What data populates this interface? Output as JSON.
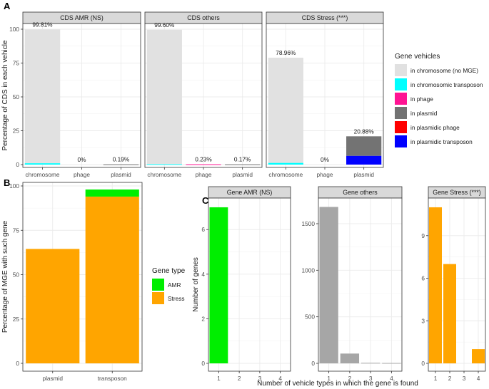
{
  "colors": {
    "in chromosome (no MGE)": "#e1e1e1",
    "in chromosomic transposon": "#00ffff",
    "in phage": "#ff1493",
    "in plasmid": "#737373",
    "in plasmidic phage": "#ff0000",
    "in plasmidic transposon": "#0000ff",
    "AMR": "#00ee00",
    "Stress": "#ffa500",
    "others": "#a6a6a6",
    "panel_strip": "#d9d9d9",
    "grid": "#ebebeb"
  },
  "chart_data": [
    {
      "id": "A",
      "type": "bar",
      "stacked": true,
      "panel_label": "A",
      "ylabel": "Percentage of CDS in each vehicle",
      "xlabel": "",
      "ylim": [
        0,
        100
      ],
      "yticks": [
        0,
        25,
        50,
        75,
        100
      ],
      "categories": [
        "chromosome",
        "phage",
        "plasmid"
      ],
      "legend": {
        "title": "Gene vehicles",
        "position": "right",
        "entries": [
          "in chromosome (no MGE)",
          "in chromosomic transposon",
          "in phage",
          "in plasmid",
          "in plasmidic phage",
          "in plasmidic transposon"
        ]
      },
      "facets": [
        {
          "title": "CDS AMR (NS)",
          "labels": [
            "99.81%",
            "0%",
            "0.19%"
          ],
          "series": [
            {
              "name": "in chromosome (no MGE)",
              "values": [
                98.8,
                0,
                0
              ]
            },
            {
              "name": "in chromosomic transposon",
              "values": [
                1.0,
                0,
                0
              ]
            },
            {
              "name": "in phage",
              "values": [
                0,
                0,
                0
              ]
            },
            {
              "name": "in plasmid",
              "values": [
                0,
                0,
                0.19
              ]
            },
            {
              "name": "in plasmidic phage",
              "values": [
                0,
                0,
                0
              ]
            },
            {
              "name": "in plasmidic transposon",
              "values": [
                0,
                0,
                0
              ]
            }
          ]
        },
        {
          "title": "CDS others",
          "labels": [
            "99.60%",
            "0.23%",
            "0.17%"
          ],
          "series": [
            {
              "name": "in chromosome (no MGE)",
              "values": [
                99.3,
                0,
                0
              ]
            },
            {
              "name": "in chromosomic transposon",
              "values": [
                0.3,
                0,
                0
              ]
            },
            {
              "name": "in phage",
              "values": [
                0,
                0.23,
                0
              ]
            },
            {
              "name": "in plasmid",
              "values": [
                0,
                0,
                0.17
              ]
            },
            {
              "name": "in plasmidic phage",
              "values": [
                0,
                0,
                0
              ]
            },
            {
              "name": "in plasmidic transposon",
              "values": [
                0,
                0,
                0
              ]
            }
          ]
        },
        {
          "title": "CDS Stress (***)",
          "labels": [
            "78.96%",
            "0%",
            "20.88%"
          ],
          "series": [
            {
              "name": "in chromosome (no MGE)",
              "values": [
                77.7,
                0,
                0
              ]
            },
            {
              "name": "in chromosomic transposon",
              "values": [
                1.26,
                0,
                0
              ]
            },
            {
              "name": "in phage",
              "values": [
                0,
                0,
                0
              ]
            },
            {
              "name": "in plasmid",
              "values": [
                0,
                0,
                14.4
              ]
            },
            {
              "name": "in plasmidic phage",
              "values": [
                0,
                0,
                0
              ]
            },
            {
              "name": "in plasmidic transposon",
              "values": [
                0,
                0,
                6.48
              ]
            }
          ]
        }
      ]
    },
    {
      "id": "B",
      "type": "bar",
      "stacked": true,
      "panel_label": "B",
      "ylabel": "Percentage of MGE with such gene",
      "xlabel": "",
      "ylim": [
        0,
        100
      ],
      "yticks": [
        0,
        25,
        50,
        75,
        100
      ],
      "categories": [
        "plasmid",
        "transposon"
      ],
      "series": [
        {
          "name": "Stress",
          "values": [
            64.5,
            94.0
          ]
        },
        {
          "name": "AMR",
          "values": [
            0,
            4.0
          ]
        }
      ],
      "legend": {
        "title": "Gene type",
        "position": "right",
        "entries": [
          "AMR",
          "Stress"
        ]
      }
    },
    {
      "id": "C",
      "type": "bar",
      "panel_label": "C",
      "ylabel": "Number of genes",
      "xlabel": "Number of vehicle types in which the gene is found",
      "x": [
        "1",
        "2",
        "3",
        "4"
      ],
      "facets": [
        {
          "title": "Gene AMR (NS)",
          "series_name": "AMR",
          "ylim": [
            0,
            7.35
          ],
          "yticks": [
            0,
            2,
            4,
            6
          ],
          "values": [
            7,
            0,
            0,
            0
          ]
        },
        {
          "title": "Gene others",
          "series_name": "others",
          "ylim": [
            0,
            1760
          ],
          "yticks": [
            0,
            500,
            1000,
            1500
          ],
          "values": [
            1680,
            105,
            6,
            4
          ]
        },
        {
          "title": "Gene Stress (***)",
          "series_name": "Stress",
          "ylim": [
            0,
            11.55
          ],
          "yticks": [
            0,
            3,
            6,
            9
          ],
          "values": [
            11,
            7,
            0,
            1
          ]
        }
      ]
    }
  ]
}
